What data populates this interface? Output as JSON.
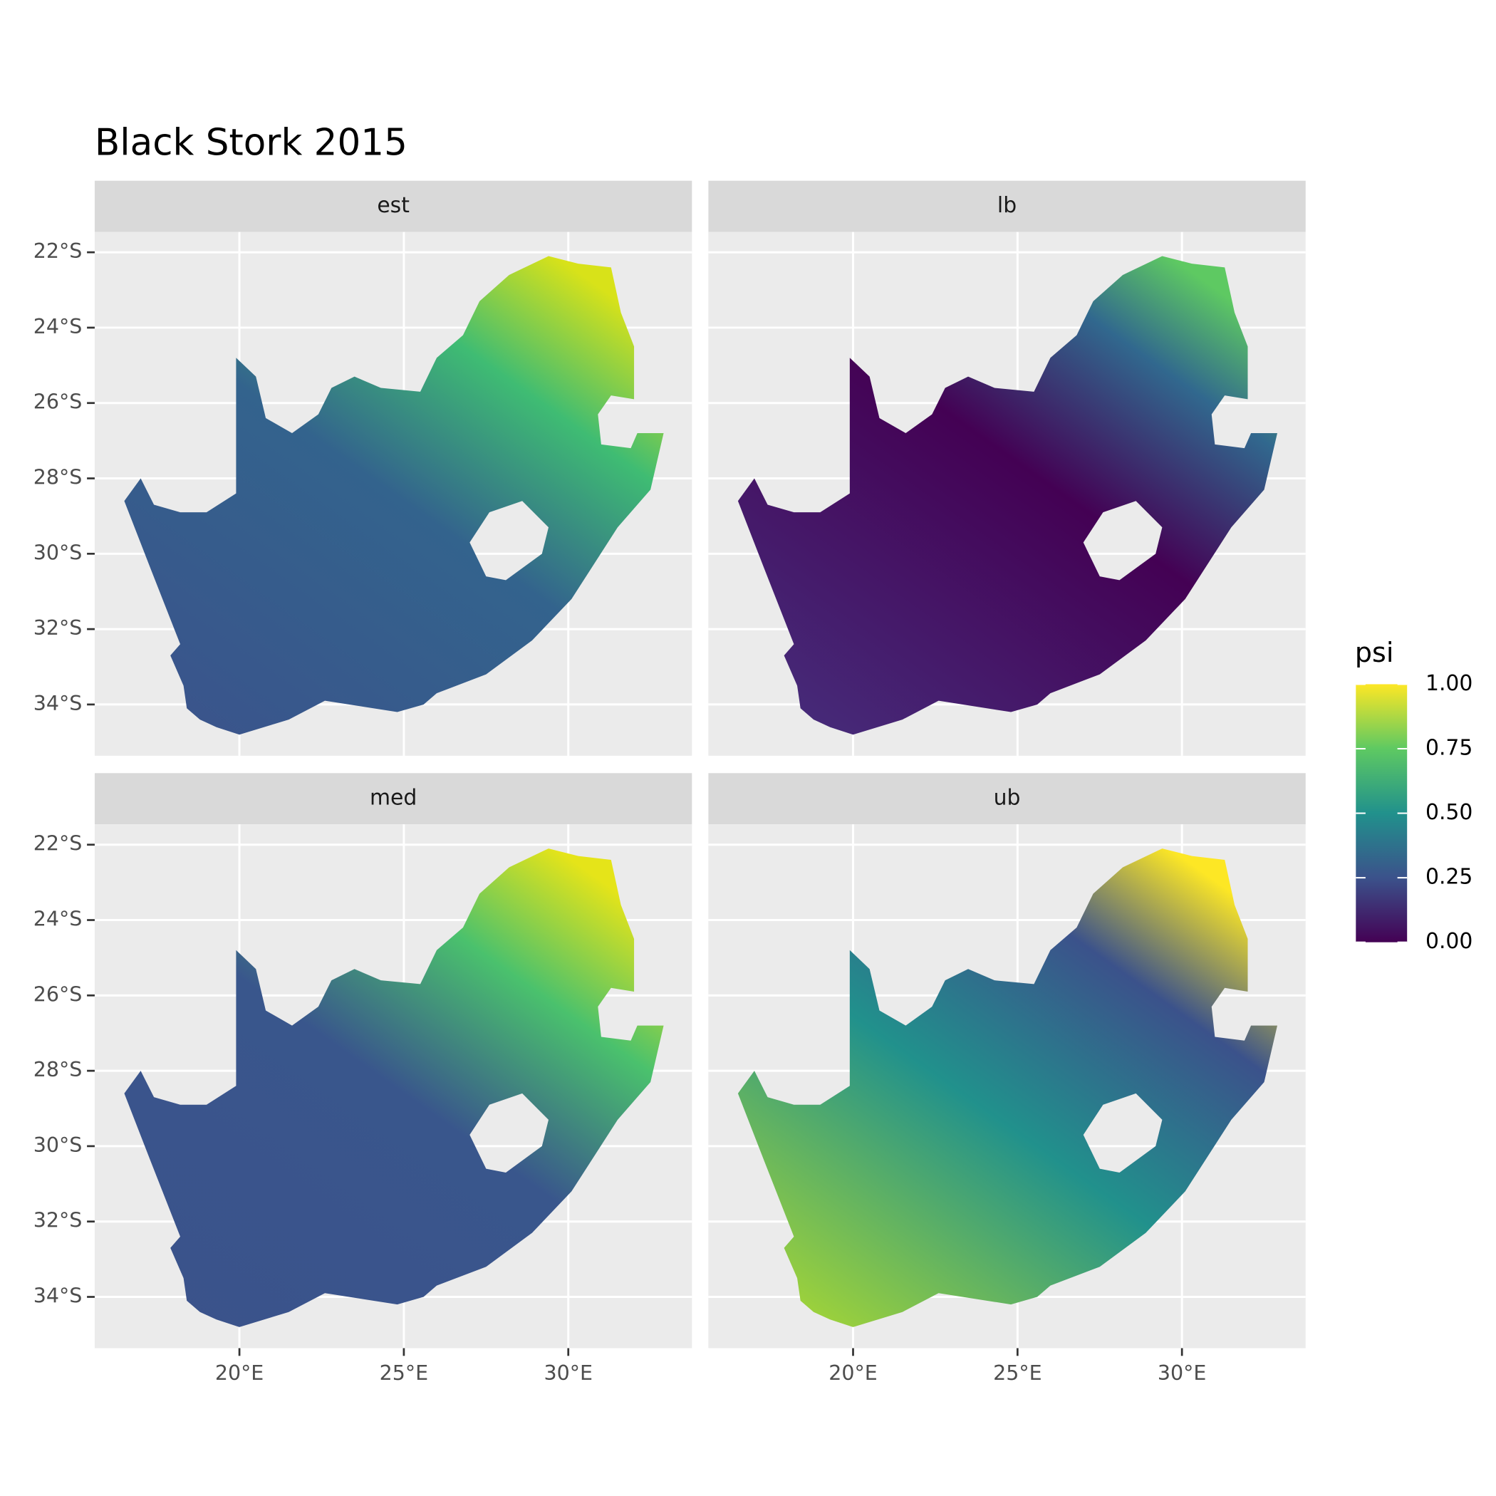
{
  "chart_data": {
    "type": "map",
    "title": "Black Stork 2015",
    "facets": [
      "est",
      "lb",
      "med",
      "ub"
    ],
    "xlim": [
      15.6,
      33.76
    ],
    "ylim": [
      -35.36,
      -21.46
    ],
    "xticks": [
      {
        "value": 20,
        "label": "20°E"
      },
      {
        "value": 25,
        "label": "25°E"
      },
      {
        "value": 30,
        "label": "30°E"
      }
    ],
    "yticks": [
      {
        "value": -22,
        "label": "22°S"
      },
      {
        "value": -24,
        "label": "24°S"
      },
      {
        "value": -26,
        "label": "26°S"
      },
      {
        "value": -28,
        "label": "28°S"
      },
      {
        "value": -30,
        "label": "30°S"
      },
      {
        "value": -32,
        "label": "32°S"
      },
      {
        "value": -34,
        "label": "34°S"
      }
    ],
    "legend": {
      "title": "psi",
      "lim": [
        0,
        1
      ],
      "ticks": [
        {
          "value": 0,
          "label": "0.00"
        },
        {
          "value": 0.25,
          "label": "0.25"
        },
        {
          "value": 0.5,
          "label": "0.50"
        },
        {
          "value": 0.75,
          "label": "0.75"
        },
        {
          "value": 1,
          "label": "1.00"
        }
      ],
      "colors": [
        "#440154",
        "#3b528b",
        "#21918c",
        "#5ec962",
        "#fde725"
      ]
    },
    "grid": true
  }
}
